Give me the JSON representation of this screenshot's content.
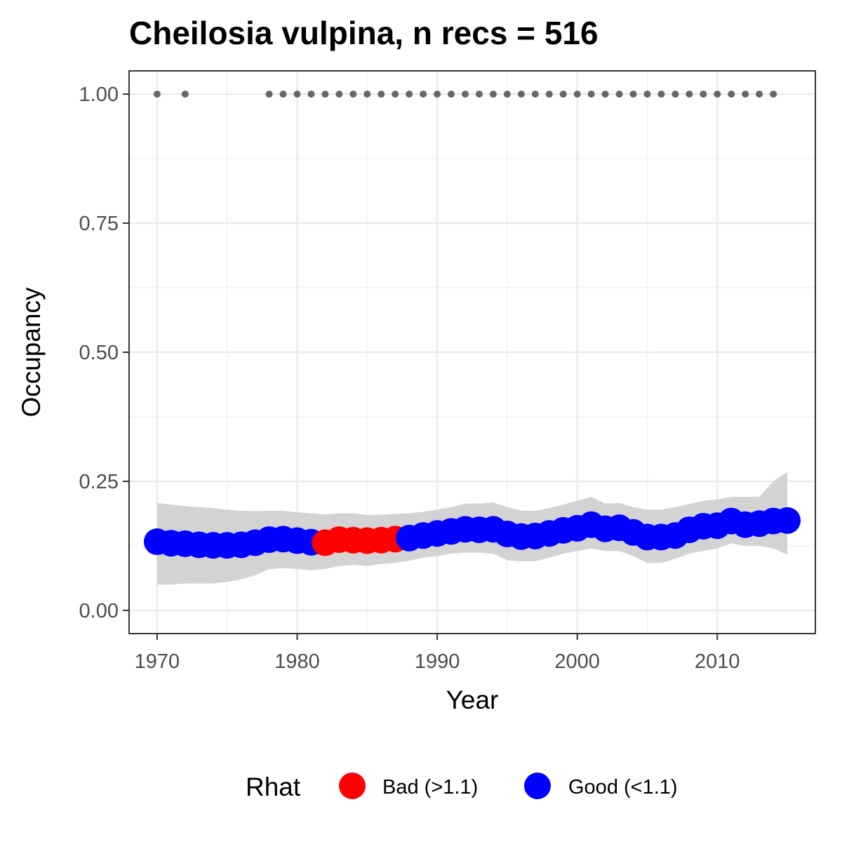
{
  "chart_data": {
    "type": "line",
    "title": "Cheilosia vulpina, n recs = 516",
    "xlabel": "Year",
    "ylabel": "Occupancy",
    "xlim": [
      1968,
      2017
    ],
    "ylim": [
      -0.045,
      1.045
    ],
    "x_ticks": [
      1970,
      1980,
      1990,
      2000,
      2010
    ],
    "x_tick_labels": [
      "1970",
      "1980",
      "1990",
      "2000",
      "2010"
    ],
    "y_ticks": [
      0,
      0.25,
      0.5,
      0.75,
      1
    ],
    "y_tick_labels": [
      "0.00",
      "0.25",
      "0.50",
      "0.75",
      "1.00"
    ],
    "grid": true,
    "legend": {
      "title": "Rhat",
      "position": "bottom",
      "entries": [
        {
          "label": "Bad (>1.1)",
          "color": "#ff0000"
        },
        {
          "label": "Good (<1.1)",
          "color": "#0000ff"
        }
      ]
    },
    "colors": {
      "bad": "#ff0000",
      "good": "#0000ff",
      "ribbon": "#d3d3d3",
      "record_points": "#666666"
    },
    "years": [
      1970,
      1971,
      1972,
      1973,
      1974,
      1975,
      1976,
      1977,
      1978,
      1979,
      1980,
      1981,
      1982,
      1983,
      1984,
      1985,
      1986,
      1987,
      1988,
      1989,
      1990,
      1991,
      1992,
      1993,
      1994,
      1995,
      1996,
      1997,
      1998,
      1999,
      2000,
      2001,
      2002,
      2003,
      2004,
      2005,
      2006,
      2007,
      2008,
      2009,
      2010,
      2011,
      2012,
      2013,
      2014,
      2015
    ],
    "occupancy": [
      0.133,
      0.13,
      0.129,
      0.127,
      0.126,
      0.126,
      0.127,
      0.131,
      0.137,
      0.138,
      0.135,
      0.132,
      0.131,
      0.137,
      0.136,
      0.135,
      0.136,
      0.138,
      0.14,
      0.145,
      0.149,
      0.153,
      0.157,
      0.156,
      0.157,
      0.148,
      0.143,
      0.144,
      0.149,
      0.155,
      0.159,
      0.166,
      0.158,
      0.16,
      0.151,
      0.142,
      0.142,
      0.145,
      0.156,
      0.163,
      0.164,
      0.173,
      0.166,
      0.168,
      0.173,
      0.174
    ],
    "lower": [
      0.05,
      0.05,
      0.052,
      0.052,
      0.052,
      0.055,
      0.06,
      0.068,
      0.08,
      0.082,
      0.08,
      0.078,
      0.08,
      0.086,
      0.088,
      0.086,
      0.09,
      0.092,
      0.096,
      0.102,
      0.105,
      0.11,
      0.112,
      0.112,
      0.11,
      0.097,
      0.095,
      0.095,
      0.102,
      0.11,
      0.115,
      0.12,
      0.115,
      0.115,
      0.105,
      0.092,
      0.092,
      0.1,
      0.11,
      0.115,
      0.12,
      0.13,
      0.125,
      0.125,
      0.12,
      0.108
    ],
    "upper": [
      0.208,
      0.205,
      0.202,
      0.2,
      0.198,
      0.195,
      0.193,
      0.192,
      0.193,
      0.193,
      0.19,
      0.188,
      0.186,
      0.188,
      0.188,
      0.185,
      0.185,
      0.187,
      0.188,
      0.191,
      0.195,
      0.2,
      0.207,
      0.207,
      0.209,
      0.2,
      0.193,
      0.193,
      0.198,
      0.205,
      0.212,
      0.22,
      0.207,
      0.208,
      0.2,
      0.195,
      0.195,
      0.2,
      0.206,
      0.212,
      0.215,
      0.22,
      0.22,
      0.22,
      0.25,
      0.268
    ],
    "rhat_status": [
      "good",
      "good",
      "good",
      "good",
      "good",
      "good",
      "good",
      "good",
      "good",
      "good",
      "good",
      "good",
      "bad",
      "bad",
      "bad",
      "bad",
      "bad",
      "bad",
      "good",
      "good",
      "good",
      "good",
      "good",
      "good",
      "good",
      "good",
      "good",
      "good",
      "good",
      "good",
      "good",
      "good",
      "good",
      "good",
      "good",
      "good",
      "good",
      "good",
      "good",
      "good",
      "good",
      "good",
      "good",
      "good",
      "good",
      "good"
    ],
    "record_years": [
      1970,
      1972,
      1978,
      1979,
      1980,
      1981,
      1982,
      1983,
      1984,
      1985,
      1986,
      1987,
      1988,
      1989,
      1990,
      1991,
      1992,
      1993,
      1994,
      1995,
      1996,
      1997,
      1998,
      1999,
      2000,
      2001,
      2002,
      2003,
      2004,
      2005,
      2006,
      2007,
      2008,
      2009,
      2010,
      2011,
      2012,
      2013,
      2014
    ],
    "record_value": 1.0
  }
}
